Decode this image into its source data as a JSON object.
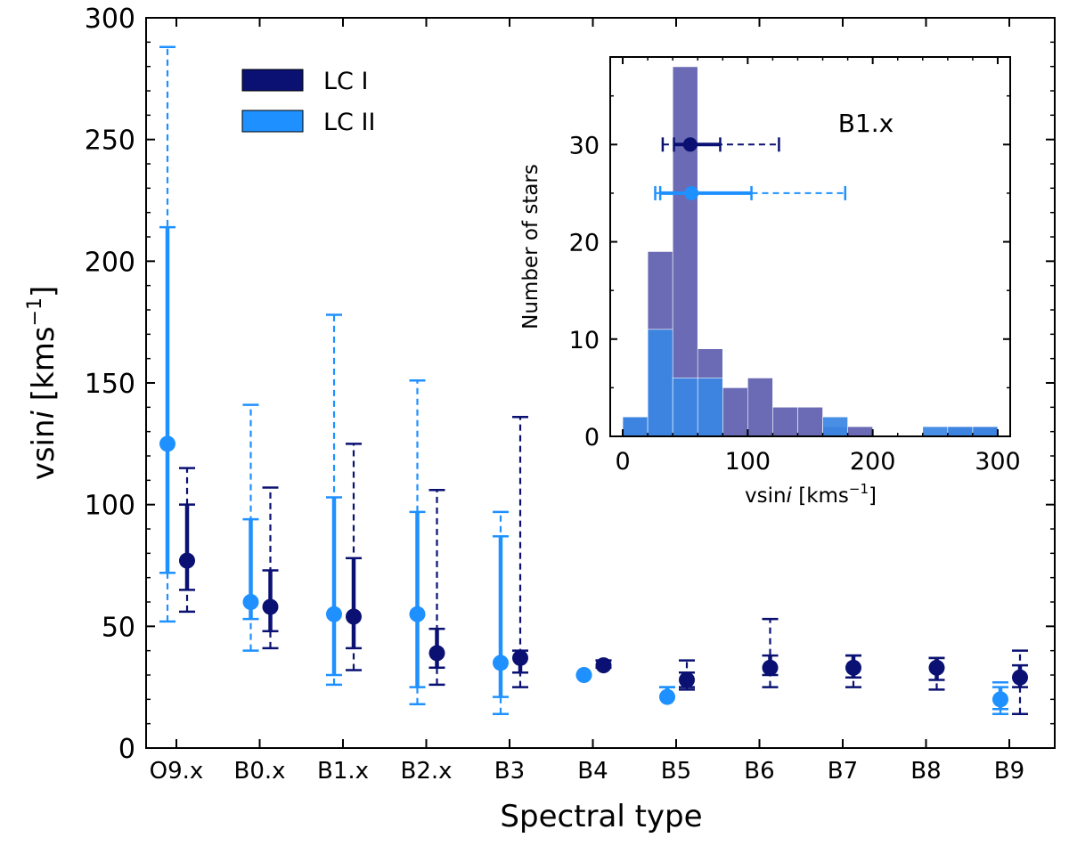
{
  "chart_data": [
    {
      "type": "scatter",
      "title": "",
      "xlabel": "Spectral type",
      "ylabel_main": "vsin",
      "ylabel_italic": "i",
      "ylabel_unit": " [kms",
      "ylabel_sup": "−1",
      "ylabel_close": "]",
      "ylim": [
        0,
        300
      ],
      "yticks": [
        0,
        50,
        100,
        150,
        200,
        250,
        300
      ],
      "categories": [
        "O9.x",
        "B0.x",
        "B1.x",
        "B2.x",
        "B3",
        "B4",
        "B5",
        "B6",
        "B7",
        "B8",
        "B9"
      ],
      "legend": {
        "placement": "top-left",
        "entries": [
          {
            "label": "LC I",
            "color": "#0a1172"
          },
          {
            "label": "LC II",
            "color": "#1e90ff"
          }
        ]
      },
      "series": [
        {
          "name": "LC I",
          "color": "#0a1172",
          "points": [
            {
              "category": "O9.x",
              "value": 77,
              "inner": [
                65,
                100
              ],
              "outer": [
                56,
                115
              ]
            },
            {
              "category": "B0.x",
              "value": 58,
              "inner": [
                48,
                73
              ],
              "outer": [
                41,
                107
              ]
            },
            {
              "category": "B1.x",
              "value": 54,
              "inner": [
                41,
                78
              ],
              "outer": [
                32,
                125
              ]
            },
            {
              "category": "B2.x",
              "value": 39,
              "inner": [
                33,
                49
              ],
              "outer": [
                26,
                106
              ]
            },
            {
              "category": "B3",
              "value": 37,
              "inner": [
                31,
                40
              ],
              "outer": [
                25,
                136
              ]
            },
            {
              "category": "B4",
              "value": 34,
              "inner": [
                33,
                36
              ],
              "outer": [
                33,
                36
              ]
            },
            {
              "category": "B5",
              "value": 28,
              "inner": [
                25,
                31
              ],
              "outer": [
                24,
                36
              ]
            },
            {
              "category": "B6",
              "value": 33,
              "inner": [
                30,
                38
              ],
              "outer": [
                25,
                53
              ]
            },
            {
              "category": "B7",
              "value": 33,
              "inner": [
                29,
                38
              ],
              "outer": [
                25,
                38
              ]
            },
            {
              "category": "B8",
              "value": 33,
              "inner": [
                28,
                37
              ],
              "outer": [
                24,
                37
              ]
            },
            {
              "category": "B9",
              "value": 29,
              "inner": [
                25,
                34
              ],
              "outer": [
                14,
                40
              ]
            }
          ]
        },
        {
          "name": "LC II",
          "color": "#1e90ff",
          "points": [
            {
              "category": "O9.x",
              "value": 125,
              "inner": [
                72,
                214
              ],
              "outer": [
                52,
                288
              ]
            },
            {
              "category": "B0.x",
              "value": 60,
              "inner": [
                53,
                94
              ],
              "outer": [
                40,
                141
              ]
            },
            {
              "category": "B1.x",
              "value": 55,
              "inner": [
                30,
                103
              ],
              "outer": [
                26,
                178
              ]
            },
            {
              "category": "B2.x",
              "value": 55,
              "inner": [
                25,
                97
              ],
              "outer": [
                18,
                151
              ]
            },
            {
              "category": "B3",
              "value": 35,
              "inner": [
                21,
                87
              ],
              "outer": [
                14,
                97
              ]
            },
            {
              "category": "B4",
              "value": 30,
              "inner": [
                30,
                30
              ],
              "outer": [
                30,
                30
              ]
            },
            {
              "category": "B5",
              "value": 21,
              "inner": [
                21,
                25
              ],
              "outer": [
                21,
                25
              ]
            },
            {
              "category": "B9",
              "value": 20,
              "inner": [
                16,
                25
              ],
              "outer": [
                14,
                27
              ]
            }
          ]
        }
      ]
    },
    {
      "type": "bar",
      "title": "B1.x",
      "xlabel_main": "vsin",
      "xlabel_italic": "i",
      "xlabel_unit": " [kms",
      "xlabel_sup": "−1",
      "xlabel_close": "]",
      "ylabel": "Number of stars",
      "xlim": [
        -10,
        310
      ],
      "ylim": [
        0,
        39
      ],
      "xticks": [
        0,
        100,
        200,
        300
      ],
      "yticks": [
        0,
        10,
        20,
        30
      ],
      "bin_edges": [
        0,
        20,
        40,
        60,
        80,
        100,
        120,
        140,
        160,
        180,
        200,
        220,
        240,
        260,
        280,
        300
      ],
      "series": [
        {
          "name": "LC I",
          "color": "#6a6bb4",
          "values": [
            2,
            19,
            38,
            9,
            5,
            6,
            3,
            3,
            1,
            1,
            0,
            0,
            0,
            1,
            1
          ]
        },
        {
          "name": "LC II",
          "color": "#3a85e4",
          "values": [
            2,
            11,
            6,
            6,
            0,
            0,
            0,
            0,
            2,
            0,
            0,
            0,
            1,
            1,
            1
          ]
        }
      ],
      "summary_points": [
        {
          "name": "LC I",
          "color": "#0a1172",
          "y": 30,
          "value": 54,
          "inner": [
            41,
            78
          ],
          "outer": [
            32,
            125
          ]
        },
        {
          "name": "LC II",
          "color": "#1e90ff",
          "y": 25,
          "value": 55,
          "inner": [
            30,
            103
          ],
          "outer": [
            26,
            178
          ]
        }
      ]
    }
  ]
}
